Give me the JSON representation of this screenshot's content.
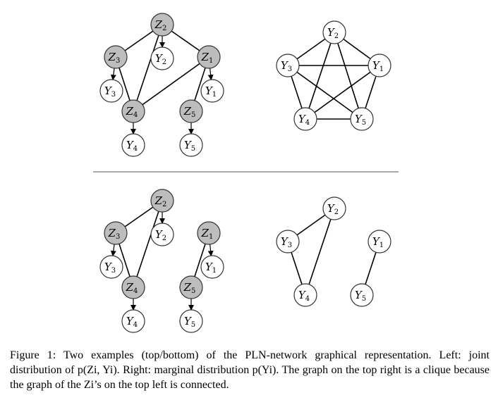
{
  "figure": {
    "panels": [
      {
        "name": "top",
        "joint_nodes": [
          {
            "id": "Z2",
            "base": "Z",
            "sub": "2",
            "kind": "latent"
          },
          {
            "id": "Y2",
            "base": "Y",
            "sub": "2",
            "kind": "observed"
          },
          {
            "id": "Z3",
            "base": "Z",
            "sub": "3",
            "kind": "latent"
          },
          {
            "id": "Z1",
            "base": "Z",
            "sub": "1",
            "kind": "latent"
          },
          {
            "id": "Y3",
            "base": "Y",
            "sub": "3",
            "kind": "observed"
          },
          {
            "id": "Y1",
            "base": "Y",
            "sub": "1",
            "kind": "observed"
          },
          {
            "id": "Z4",
            "base": "Z",
            "sub": "4",
            "kind": "latent"
          },
          {
            "id": "Z5",
            "base": "Z",
            "sub": "5",
            "kind": "latent"
          },
          {
            "id": "Y4",
            "base": "Y",
            "sub": "4",
            "kind": "observed"
          },
          {
            "id": "Y5",
            "base": "Y",
            "sub": "5",
            "kind": "observed"
          }
        ],
        "joint_edges": [
          [
            "Z2",
            "Z3"
          ],
          [
            "Z2",
            "Z1"
          ],
          [
            "Z2",
            "Z4"
          ],
          [
            "Z3",
            "Z4"
          ],
          [
            "Z1",
            "Z4"
          ],
          [
            "Z1",
            "Z5"
          ]
        ],
        "joint_arrows": [
          [
            "Z2",
            "Y2"
          ],
          [
            "Z3",
            "Y3"
          ],
          [
            "Z1",
            "Y1"
          ],
          [
            "Z4",
            "Y4"
          ],
          [
            "Z5",
            "Y5"
          ]
        ],
        "marginal_nodes": [
          {
            "id": "Y2",
            "base": "Y",
            "sub": "2",
            "kind": "observed"
          },
          {
            "id": "Y3",
            "base": "Y",
            "sub": "3",
            "kind": "observed"
          },
          {
            "id": "Y1",
            "base": "Y",
            "sub": "1",
            "kind": "observed"
          },
          {
            "id": "Y4",
            "base": "Y",
            "sub": "4",
            "kind": "observed"
          },
          {
            "id": "Y5",
            "base": "Y",
            "sub": "5",
            "kind": "observed"
          }
        ],
        "marginal_edges": [
          [
            "Y2",
            "Y3"
          ],
          [
            "Y2",
            "Y1"
          ],
          [
            "Y2",
            "Y4"
          ],
          [
            "Y2",
            "Y5"
          ],
          [
            "Y3",
            "Y1"
          ],
          [
            "Y3",
            "Y4"
          ],
          [
            "Y3",
            "Y5"
          ],
          [
            "Y1",
            "Y4"
          ],
          [
            "Y1",
            "Y5"
          ],
          [
            "Y4",
            "Y5"
          ]
        ]
      },
      {
        "name": "bottom",
        "joint_nodes": [
          {
            "id": "Z2",
            "base": "Z",
            "sub": "2",
            "kind": "latent"
          },
          {
            "id": "Y2",
            "base": "Y",
            "sub": "2",
            "kind": "observed"
          },
          {
            "id": "Z3",
            "base": "Z",
            "sub": "3",
            "kind": "latent"
          },
          {
            "id": "Z1",
            "base": "Z",
            "sub": "1",
            "kind": "latent"
          },
          {
            "id": "Y3",
            "base": "Y",
            "sub": "3",
            "kind": "observed"
          },
          {
            "id": "Y1",
            "base": "Y",
            "sub": "1",
            "kind": "observed"
          },
          {
            "id": "Z4",
            "base": "Z",
            "sub": "4",
            "kind": "latent"
          },
          {
            "id": "Z5",
            "base": "Z",
            "sub": "5",
            "kind": "latent"
          },
          {
            "id": "Y4",
            "base": "Y",
            "sub": "4",
            "kind": "observed"
          },
          {
            "id": "Y5",
            "base": "Y",
            "sub": "5",
            "kind": "observed"
          }
        ],
        "joint_edges": [
          [
            "Z2",
            "Z3"
          ],
          [
            "Z2",
            "Z4"
          ],
          [
            "Z3",
            "Z4"
          ],
          [
            "Z1",
            "Z5"
          ]
        ],
        "joint_arrows": [
          [
            "Z2",
            "Y2"
          ],
          [
            "Z3",
            "Y3"
          ],
          [
            "Z1",
            "Y1"
          ],
          [
            "Z4",
            "Y4"
          ],
          [
            "Z5",
            "Y5"
          ]
        ],
        "marginal_nodes": [
          {
            "id": "Y2",
            "base": "Y",
            "sub": "2",
            "kind": "observed"
          },
          {
            "id": "Y3",
            "base": "Y",
            "sub": "3",
            "kind": "observed"
          },
          {
            "id": "Y1",
            "base": "Y",
            "sub": "1",
            "kind": "observed"
          },
          {
            "id": "Y4",
            "base": "Y",
            "sub": "4",
            "kind": "observed"
          },
          {
            "id": "Y5",
            "base": "Y",
            "sub": "5",
            "kind": "observed"
          }
        ],
        "marginal_edges": [
          [
            "Y2",
            "Y3"
          ],
          [
            "Y2",
            "Y4"
          ],
          [
            "Y3",
            "Y4"
          ],
          [
            "Y1",
            "Y5"
          ]
        ]
      }
    ]
  },
  "caption": {
    "text": "Figure 1: Two examples (top/bottom) of the PLN-network graphical representation. Left: joint distribution of p(Zi, Yi). Right: marginal distribution p(Yi). The graph on the top right is a clique because the graph of the Zi’s on the top left is connected."
  }
}
